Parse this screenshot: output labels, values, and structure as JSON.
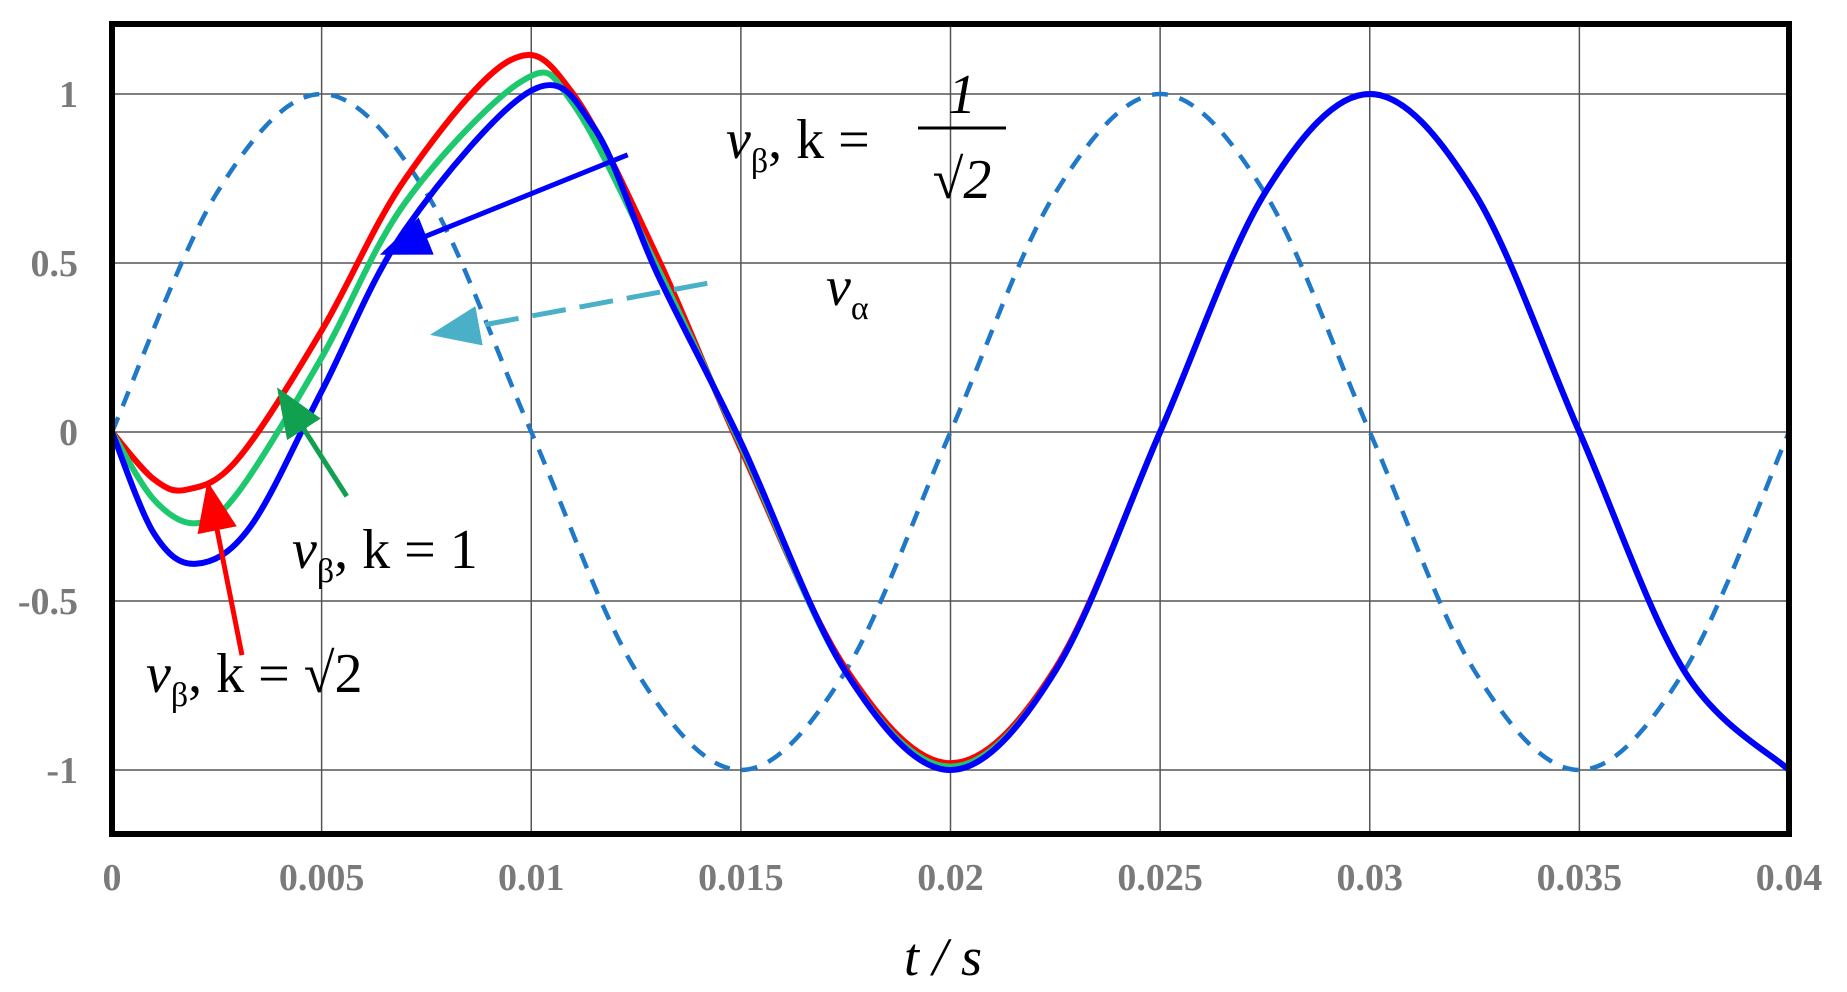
{
  "chart_data": {
    "type": "line",
    "xlabel": "t / s",
    "ylabel": "",
    "xlim": [
      0,
      0.04
    ],
    "ylim": [
      -1.2,
      1.2
    ],
    "xticks": [
      "0",
      "0.005",
      "0.01",
      "0.015",
      "0.02",
      "0.025",
      "0.03",
      "0.035",
      "0.04"
    ],
    "yticks": [
      "1",
      "0.5",
      "0",
      "-0.5",
      "-1"
    ],
    "grid": true,
    "series": [
      {
        "id": "v_alpha",
        "name": "vα",
        "color": "#1f78c8",
        "style": "dashed",
        "x": [
          0,
          0.0025,
          0.005,
          0.0075,
          0.01,
          0.0125,
          0.015,
          0.0175,
          0.02,
          0.0225,
          0.025,
          0.0275,
          0.03,
          0.0325,
          0.035,
          0.0375,
          0.04
        ],
        "y": [
          0,
          0.707,
          1,
          0.707,
          0,
          -0.707,
          -1,
          -0.707,
          0,
          0.707,
          1,
          0.707,
          0,
          -0.707,
          -1,
          -0.707,
          0
        ]
      },
      {
        "id": "v_beta_k_sqrt2",
        "name": "vβ, k = √2",
        "color": "#ff0000",
        "style": "solid",
        "x": [
          0,
          0.001,
          0.0018,
          0.003,
          0.005,
          0.007,
          0.0095,
          0.011,
          0.013,
          0.015,
          0.0175,
          0.02,
          0.0225,
          0.025,
          0.0275,
          0.03,
          0.0325,
          0.035,
          0.0375,
          0.04
        ],
        "y": [
          0,
          -0.14,
          -0.17,
          -0.08,
          0.3,
          0.75,
          1.1,
          1.0,
          0.52,
          -0.05,
          -0.7,
          -0.98,
          -0.7,
          0,
          0.707,
          1,
          0.707,
          0,
          -0.707,
          -1
        ]
      },
      {
        "id": "v_beta_k_1",
        "name": "vβ, k = 1",
        "color": "#1ec86e",
        "style": "solid",
        "x": [
          0,
          0.001,
          0.002,
          0.003,
          0.005,
          0.007,
          0.0098,
          0.011,
          0.013,
          0.015,
          0.0175,
          0.02,
          0.0225,
          0.025,
          0.0275,
          0.03,
          0.0325,
          0.035,
          0.0375,
          0.04
        ],
        "y": [
          0,
          -0.2,
          -0.27,
          -0.18,
          0.22,
          0.68,
          1.04,
          0.97,
          0.49,
          -0.04,
          -0.71,
          -0.99,
          -0.707,
          0,
          0.707,
          1,
          0.707,
          0,
          -0.707,
          -1
        ]
      },
      {
        "id": "v_beta_k_inv_sqrt2",
        "name": "vβ, k = 1/√2",
        "color": "#0000ff",
        "style": "solid",
        "x": [
          0,
          0.001,
          0.002,
          0.0033,
          0.005,
          0.007,
          0.01,
          0.0115,
          0.013,
          0.015,
          0.0175,
          0.02,
          0.0225,
          0.025,
          0.0275,
          0.03,
          0.0325,
          0.035,
          0.0375,
          0.04
        ],
        "y": [
          0,
          -0.3,
          -0.39,
          -0.28,
          0.12,
          0.6,
          1.01,
          0.9,
          0.47,
          -0.03,
          -0.71,
          -1,
          -0.707,
          0,
          0.707,
          1,
          0.707,
          0,
          -0.707,
          -1
        ]
      }
    ],
    "annotations": [
      {
        "id": "ann_inv_sqrt2",
        "series": "v_beta_k_inv_sqrt2",
        "text_main": "v",
        "text_sub": "β",
        "text_k": ", k = ",
        "text_value_num": "1",
        "text_value_den": "√2",
        "arrow_color": "#0000ff",
        "arrow_to": [
          0.0065,
          0.53
        ],
        "arrow_from": [
          0.0123,
          0.82
        ]
      },
      {
        "id": "ann_alpha",
        "series": "v_alpha",
        "text_main": "v",
        "text_sub": "α",
        "arrow_color": "#4ab0c8",
        "arrow_style": "dashed",
        "arrow_to": [
          0.0077,
          0.29
        ],
        "arrow_from": [
          0.0142,
          0.44
        ]
      },
      {
        "id": "ann_k1",
        "series": "v_beta_k_1",
        "text_main": "v",
        "text_sub": "β",
        "text_k": ", k = 1",
        "arrow_color": "#10a050",
        "arrow_to": [
          0.004,
          0.12
        ],
        "arrow_from": [
          0.0056,
          -0.19
        ]
      },
      {
        "id": "ann_sqrt2",
        "series": "v_beta_k_sqrt2",
        "text_main": "v",
        "text_sub": "β",
        "text_k": ", k = ",
        "text_value": "√2",
        "arrow_color": "#ff0000",
        "arrow_to": [
          0.0023,
          -0.16
        ],
        "arrow_from": [
          0.0031,
          -0.66
        ]
      }
    ]
  }
}
